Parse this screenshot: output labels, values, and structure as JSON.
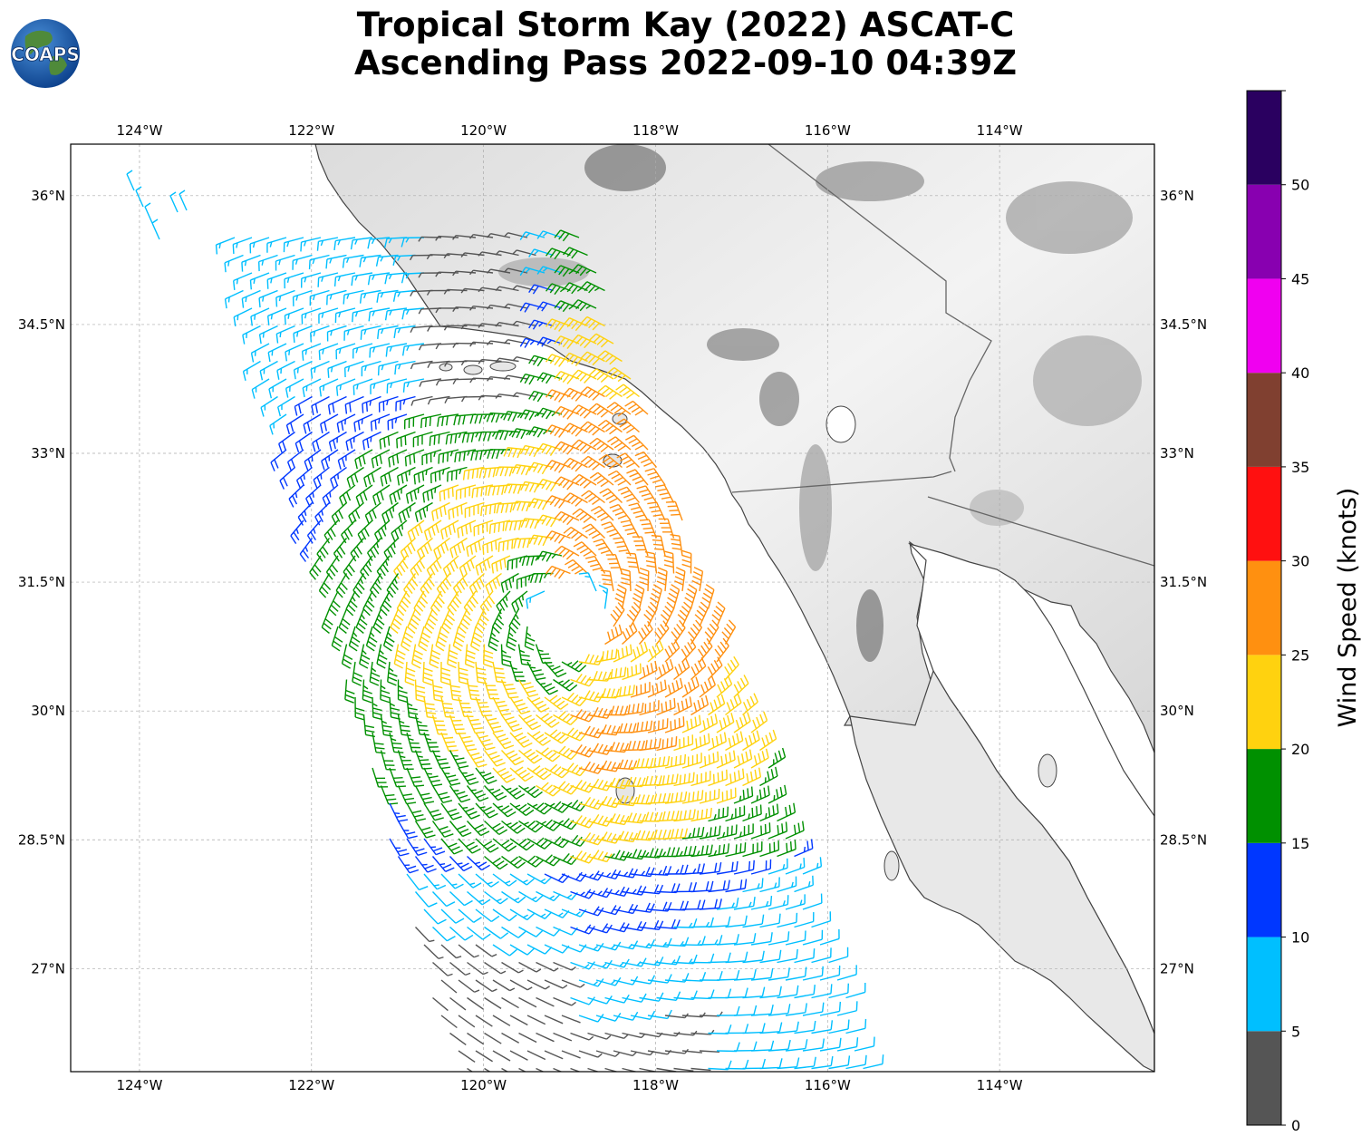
{
  "title": {
    "line1": "Tropical Storm Kay (2022) ASCAT-C",
    "line2": "Ascending Pass 2022-09-10 04:39Z"
  },
  "logo": {
    "text": "COAPS",
    "icon": "globe-icon"
  },
  "map": {
    "lon_range": [
      -124.8,
      -112.2
    ],
    "lat_range": [
      25.8,
      36.6
    ],
    "lon_ticks": [
      {
        "value": -124,
        "label": "124°W"
      },
      {
        "value": -122,
        "label": "122°W"
      },
      {
        "value": -120,
        "label": "120°W"
      },
      {
        "value": -118,
        "label": "118°W"
      },
      {
        "value": -116,
        "label": "116°W"
      },
      {
        "value": -114,
        "label": "114°W"
      }
    ],
    "lat_ticks": [
      {
        "value": 36,
        "label": "36°N"
      },
      {
        "value": 34.5,
        "label": "34.5°N"
      },
      {
        "value": 33,
        "label": "33°N"
      },
      {
        "value": 31.5,
        "label": "31.5°N"
      },
      {
        "value": 30,
        "label": "30°N"
      },
      {
        "value": 28.5,
        "label": "28.5°N"
      },
      {
        "value": 27,
        "label": "27°N"
      }
    ],
    "storm_center": {
      "lon": -119.0,
      "lat": 31.1
    },
    "colors": {
      "land_light": "#f2f2f2",
      "land_dark": "#7a7a7a",
      "ocean": "#ffffff",
      "coast": "#444444"
    }
  },
  "colorbar": {
    "label": "Wind Speed (knots)",
    "ticks": [
      "0",
      "5",
      "10",
      "15",
      "20",
      "25",
      "30",
      "35",
      "40",
      "45",
      "50"
    ],
    "bins": [
      {
        "min": 0,
        "max": 5,
        "color": "#555555"
      },
      {
        "min": 5,
        "max": 10,
        "color": "#00bfff"
      },
      {
        "min": 10,
        "max": 15,
        "color": "#0037ff"
      },
      {
        "min": 15,
        "max": 20,
        "color": "#009000"
      },
      {
        "min": 20,
        "max": 25,
        "color": "#ffd20f"
      },
      {
        "min": 25,
        "max": 30,
        "color": "#ff9010"
      },
      {
        "min": 30,
        "max": 35,
        "color": "#ff1010"
      },
      {
        "min": 35,
        "max": 40,
        "color": "#804030"
      },
      {
        "min": 40,
        "max": 45,
        "color": "#f000f0"
      },
      {
        "min": 45,
        "max": 50,
        "color": "#8800b0"
      },
      {
        "min": 50,
        "max": 55,
        "color": "#2a0060"
      }
    ]
  }
}
